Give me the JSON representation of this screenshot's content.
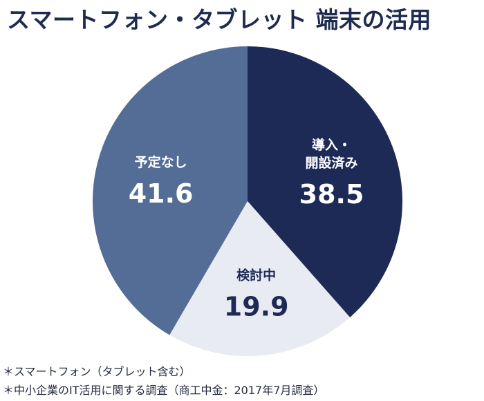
{
  "chart_data": {
    "type": "pie",
    "title": "スマートフォン・タブレット 端末の活用",
    "slices": [
      {
        "label": "導入・\n開設済み",
        "value": 38.5,
        "value_text": "38.5",
        "color": "#1e2a56",
        "text_color": "#ffffff"
      },
      {
        "label": "検討中",
        "value": 19.9,
        "value_text": "19.9",
        "color": "#e9ebf2",
        "text_color": "#1e2a56"
      },
      {
        "label": "予定なし",
        "value": 41.6,
        "value_text": "41.6",
        "color": "#536d96",
        "text_color": "#ffffff"
      }
    ],
    "start": "12 o'clock",
    "direction": "clockwise"
  },
  "notes": [
    "＊スマートフォン（タブレット含む）",
    "＊中小企業のIT活用に関する調査（商工中金：2017年7月調査）"
  ]
}
